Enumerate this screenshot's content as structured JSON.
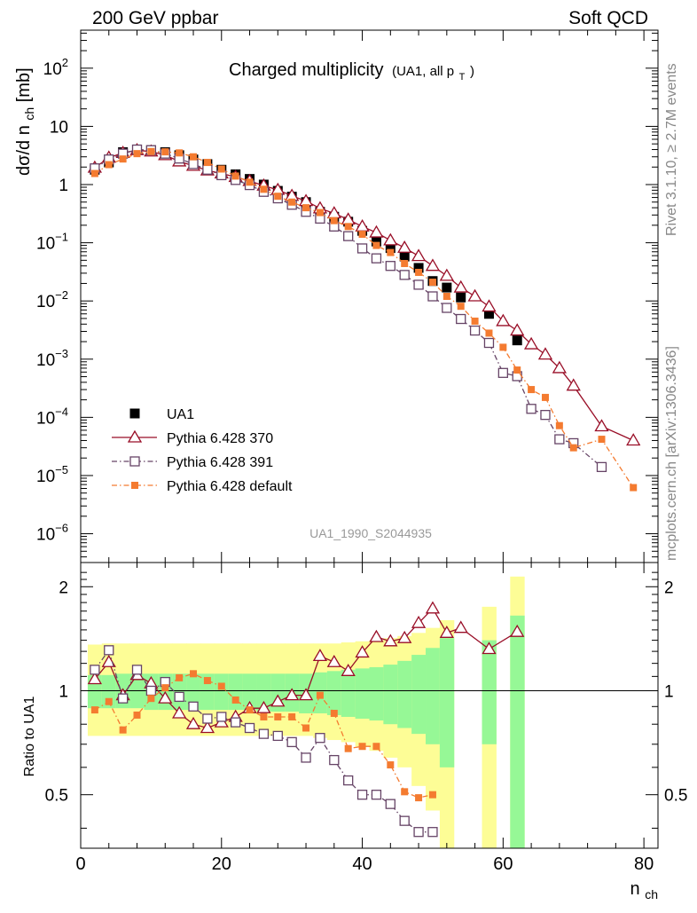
{
  "header": {
    "left": "200 GeV ppbar",
    "right": "Soft QCD",
    "side_top": "Rivet 3.1.10, ≥ 2.7M events",
    "side_bottom": "mcplots.cern.ch [arXiv:1306.3436]"
  },
  "chart_data": [
    {
      "type": "scatter",
      "title": "Charged multiplicity",
      "title_sub": "(UA1, all p",
      "title_sub_index": "T",
      "title_sub_close": ")",
      "xlabel": "n",
      "xlabel_sub": "ch",
      "ylabel": "dσ/d n",
      "ylabel_sub": "ch",
      "ylabel_unit": " [mb]",
      "yscale": "log",
      "xlim": [
        0,
        82
      ],
      "ylim": [
        3.2e-07,
        450
      ],
      "watermark": "UA1_1990_S2044935",
      "ytick_labels": [
        {
          "v": 100,
          "t": "10",
          "e": "2"
        },
        {
          "v": 10,
          "t": "10",
          "e": ""
        },
        {
          "v": 1,
          "t": "1",
          "e": ""
        },
        {
          "v": 0.1,
          "t": "10",
          "e": "−1"
        },
        {
          "v": 0.01,
          "t": "10",
          "e": "−2"
        },
        {
          "v": 0.001,
          "t": "10",
          "e": "−3"
        },
        {
          "v": 0.0001,
          "t": "10",
          "e": "−4"
        },
        {
          "v": 1e-05,
          "t": "10",
          "e": "−5"
        },
        {
          "v": 1e-06,
          "t": "10",
          "e": "−6"
        }
      ],
      "legend": [
        {
          "label": "UA1",
          "color": "#000000",
          "marker": "square-filled",
          "line": "none"
        },
        {
          "label": "Pythia 6.428 370",
          "color": "#990e27",
          "marker": "triangle-open",
          "line": "solid"
        },
        {
          "label": "Pythia 6.428 391",
          "color": "#664466",
          "marker": "square-open",
          "line": "dashdot"
        },
        {
          "label": "Pythia 6.428 default",
          "color": "#f47b30",
          "marker": "square-filled-small",
          "line": "dashdot"
        }
      ],
      "series": [
        {
          "name": "UA1",
          "x": [
            2,
            4,
            6,
            8,
            10,
            12,
            14,
            16,
            18,
            20,
            22,
            24,
            26,
            28,
            30,
            32,
            34,
            36,
            38,
            40,
            42,
            44,
            46,
            48,
            50,
            52,
            54,
            58,
            62
          ],
          "y": [
            1.8,
            2.4,
            3.6,
            4.0,
            3.9,
            3.6,
            3.2,
            2.7,
            2.25,
            1.8,
            1.5,
            1.25,
            1.0,
            0.78,
            0.62,
            0.5,
            0.34,
            0.28,
            0.23,
            0.16,
            0.105,
            0.081,
            0.058,
            0.037,
            0.022,
            0.017,
            0.0115,
            0.006,
            0.0021
          ]
        },
        {
          "name": "Pythia 6.428 370",
          "x": [
            2,
            4,
            6,
            8,
            10,
            12,
            14,
            16,
            18,
            20,
            22,
            24,
            26,
            28,
            30,
            32,
            34,
            36,
            38,
            40,
            42,
            44,
            46,
            48,
            50,
            52,
            54,
            56,
            58,
            60,
            62,
            64,
            66,
            68,
            70,
            74,
            78.5
          ],
          "y": [
            1.95,
            2.9,
            3.5,
            3.9,
            3.7,
            3.2,
            2.5,
            2.1,
            1.75,
            1.55,
            1.35,
            1.15,
            0.96,
            0.81,
            0.64,
            0.52,
            0.39,
            0.32,
            0.25,
            0.19,
            0.15,
            0.11,
            0.082,
            0.059,
            0.04,
            0.027,
            0.017,
            0.012,
            0.008,
            0.0045,
            0.0031,
            0.0018,
            0.0012,
            0.0007,
            0.00035,
            7e-05,
            4e-05
          ]
        },
        {
          "name": "Pythia 6.428 391",
          "x": [
            2,
            4,
            6,
            8,
            10,
            12,
            14,
            16,
            18,
            20,
            22,
            24,
            26,
            28,
            30,
            32,
            34,
            36,
            38,
            40,
            42,
            44,
            46,
            48,
            50,
            52,
            54,
            56,
            58,
            60,
            62,
            64,
            66,
            68,
            70,
            74
          ],
          "y": [
            1.9,
            2.7,
            3.4,
            4.0,
            3.9,
            3.4,
            2.8,
            2.25,
            1.8,
            1.45,
            1.2,
            0.98,
            0.75,
            0.58,
            0.45,
            0.34,
            0.26,
            0.19,
            0.13,
            0.08,
            0.054,
            0.04,
            0.028,
            0.019,
            0.012,
            0.0076,
            0.0049,
            0.0031,
            0.0019,
            0.00058,
            0.00051,
            0.00014,
            0.00011,
            4.2e-05,
            3.6e-05,
            1.4e-05
          ]
        },
        {
          "name": "Pythia 6.428 default",
          "x": [
            2,
            4,
            6,
            8,
            10,
            12,
            14,
            16,
            18,
            20,
            22,
            24,
            26,
            28,
            30,
            32,
            34,
            36,
            38,
            40,
            42,
            44,
            46,
            48,
            50,
            52,
            54,
            56,
            58,
            60,
            62,
            64,
            66,
            68,
            70,
            74,
            78.5
          ],
          "y": [
            1.55,
            2.2,
            2.75,
            3.4,
            3.7,
            3.65,
            3.5,
            3.0,
            2.4,
            1.85,
            1.4,
            1.1,
            0.83,
            0.63,
            0.5,
            0.4,
            0.33,
            0.24,
            0.19,
            0.14,
            0.09,
            0.068,
            0.044,
            0.031,
            0.021,
            0.012,
            0.0081,
            0.0045,
            0.0028,
            0.0016,
            0.00065,
            0.0003,
            0.00022,
            7.2e-05,
            3e-05,
            4.2e-05,
            6.2e-06
          ]
        }
      ]
    },
    {
      "type": "scatter",
      "ylabel": "Ratio to UA1",
      "xlabel": "n",
      "xlabel_sub": "ch",
      "xlim": [
        0,
        82
      ],
      "ylim": [
        0.35,
        2.35
      ],
      "yscale": "log",
      "xtick_labels": [
        0,
        20,
        40,
        60,
        80
      ],
      "ytick_labels": [
        {
          "v": 2,
          "t": "2"
        },
        {
          "v": 1,
          "t": "1"
        },
        {
          "v": 0.5,
          "t": "0.5"
        }
      ],
      "band_x": [
        1,
        3,
        5,
        7,
        9,
        11,
        13,
        15,
        17,
        19,
        21,
        23,
        25,
        27,
        29,
        31,
        33,
        35,
        37,
        39,
        41,
        43,
        45,
        47,
        49,
        51,
        53,
        55,
        57,
        59,
        61,
        63
      ],
      "band_outer_hi": [
        1.36,
        1.37,
        1.37,
        1.37,
        1.37,
        1.37,
        1.37,
        1.37,
        1.37,
        1.37,
        1.37,
        1.37,
        1.37,
        1.37,
        1.37,
        1.37,
        1.37,
        1.37,
        1.38,
        1.39,
        1.4,
        1.42,
        1.44,
        1.47,
        1.52,
        1.6,
        null,
        null,
        1.75,
        null,
        2.14,
        null
      ],
      "band_outer_lo": [
        0.74,
        0.74,
        0.74,
        0.74,
        0.74,
        0.74,
        0.74,
        0.74,
        0.74,
        0.74,
        0.74,
        0.74,
        0.74,
        0.74,
        0.74,
        0.74,
        0.73,
        0.72,
        0.71,
        0.69,
        0.67,
        0.64,
        0.6,
        0.53,
        0.45,
        0.3,
        null,
        null,
        0.3,
        null,
        0.3,
        null
      ],
      "band_inner_hi": [
        1.11,
        1.11,
        1.12,
        1.12,
        1.12,
        1.12,
        1.12,
        1.12,
        1.12,
        1.12,
        1.12,
        1.12,
        1.12,
        1.12,
        1.12,
        1.12,
        1.13,
        1.14,
        1.15,
        1.16,
        1.17,
        1.19,
        1.22,
        1.27,
        1.33,
        1.42,
        null,
        null,
        1.4,
        null,
        1.65,
        null
      ],
      "band_inner_lo": [
        0.89,
        0.89,
        0.89,
        0.89,
        0.88,
        0.88,
        0.88,
        0.88,
        0.88,
        0.88,
        0.88,
        0.88,
        0.87,
        0.87,
        0.87,
        0.86,
        0.86,
        0.85,
        0.84,
        0.83,
        0.82,
        0.8,
        0.78,
        0.75,
        0.7,
        0.6,
        null,
        null,
        0.7,
        null,
        0.3,
        null
      ],
      "series": [
        {
          "name": "Pythia 6.428 370",
          "x": [
            2,
            4,
            6,
            8,
            10,
            12,
            14,
            16,
            18,
            20,
            22,
            24,
            26,
            28,
            30,
            32,
            34,
            36,
            38,
            40,
            42,
            44,
            46,
            48,
            50,
            52,
            54,
            58,
            62
          ],
          "y": [
            1.08,
            1.21,
            0.97,
            1.11,
            1.05,
            0.95,
            0.86,
            0.8,
            0.78,
            0.81,
            0.84,
            0.89,
            0.89,
            0.93,
            0.97,
            0.97,
            1.26,
            1.21,
            1.14,
            1.29,
            1.43,
            1.39,
            1.42,
            1.57,
            1.73,
            1.47,
            1.52,
            1.32,
            1.48
          ]
        },
        {
          "name": "Pythia 6.428 391",
          "x": [
            2,
            4,
            6,
            8,
            10,
            12,
            14,
            16,
            18,
            20,
            22,
            24,
            26,
            28,
            30,
            32,
            34,
            36,
            38,
            40,
            42,
            44,
            46,
            48,
            50
          ],
          "y": [
            1.15,
            1.31,
            0.95,
            1.15,
            1.0,
            1.06,
            0.96,
            0.9,
            0.83,
            0.84,
            0.81,
            0.78,
            0.75,
            0.74,
            0.71,
            0.64,
            0.73,
            0.63,
            0.55,
            0.5,
            0.5,
            0.47,
            0.42,
            0.39,
            0.39
          ]
        },
        {
          "name": "Pythia 6.428 default",
          "x": [
            2,
            4,
            6,
            8,
            10,
            12,
            14,
            16,
            18,
            20,
            22,
            24,
            26,
            28,
            30,
            32,
            34,
            36,
            38,
            40,
            42,
            44,
            46,
            48,
            50
          ],
          "y": [
            0.88,
            0.93,
            0.77,
            0.85,
            0.95,
            1.02,
            1.09,
            1.12,
            1.07,
            1.03,
            0.94,
            0.88,
            0.84,
            0.84,
            0.84,
            0.78,
            0.97,
            0.86,
            0.68,
            0.69,
            0.69,
            0.61,
            0.51,
            0.49,
            0.5
          ]
        }
      ]
    }
  ]
}
